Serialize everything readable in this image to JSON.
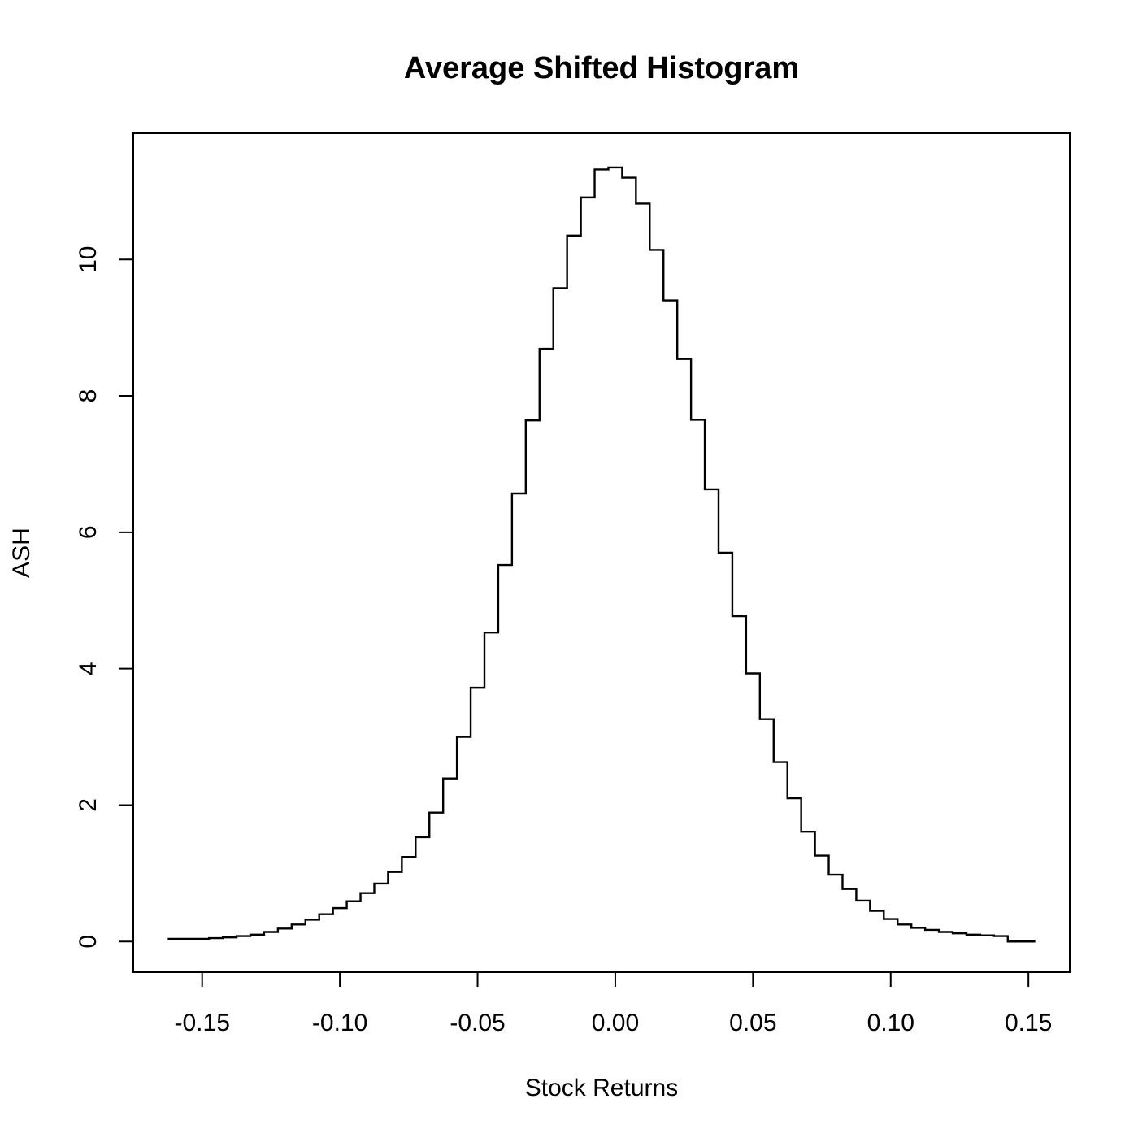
{
  "chart_data": {
    "type": "line",
    "style": "step",
    "title": "Average Shifted Histogram",
    "xlabel": "Stock Returns",
    "ylabel": "ASH",
    "xlim": [
      -0.175,
      0.165
    ],
    "ylim": [
      -0.45,
      11.85
    ],
    "xticks": [
      -0.15,
      -0.1,
      -0.05,
      0.0,
      0.05,
      0.1,
      0.15
    ],
    "xtick_labels": [
      "-0.15",
      "-0.10",
      "-0.05",
      "0.00",
      "0.05",
      "0.10",
      "0.15"
    ],
    "yticks": [
      0,
      2,
      4,
      6,
      8,
      10
    ],
    "ytick_labels": [
      "0",
      "2",
      "4",
      "6",
      "8",
      "10"
    ],
    "grid": false,
    "series": [
      {
        "name": "ASH",
        "x": [
          -0.1625,
          -0.1575,
          -0.1525,
          -0.1475,
          -0.1425,
          -0.1375,
          -0.1325,
          -0.1275,
          -0.1225,
          -0.1175,
          -0.1125,
          -0.1075,
          -0.1025,
          -0.0975,
          -0.0925,
          -0.0875,
          -0.0825,
          -0.0775,
          -0.0725,
          -0.0675,
          -0.0625,
          -0.0575,
          -0.0525,
          -0.0475,
          -0.0425,
          -0.0375,
          -0.0325,
          -0.0275,
          -0.0225,
          -0.0175,
          -0.0125,
          -0.0075,
          -0.0025,
          0.0025,
          0.0075,
          0.0125,
          0.0175,
          0.0225,
          0.0275,
          0.0325,
          0.0375,
          0.0425,
          0.0475,
          0.0525,
          0.0575,
          0.0625,
          0.0675,
          0.0725,
          0.0775,
          0.0825,
          0.0875,
          0.0925,
          0.0975,
          0.1025,
          0.1075,
          0.1125,
          0.1175,
          0.1225,
          0.1275,
          0.1325,
          0.1375,
          0.1425,
          0.1475,
          0.1525
        ],
        "y": [
          0.04,
          0.04,
          0.04,
          0.05,
          0.06,
          0.08,
          0.1,
          0.14,
          0.19,
          0.25,
          0.32,
          0.4,
          0.49,
          0.59,
          0.71,
          0.85,
          1.02,
          1.24,
          1.53,
          1.89,
          2.39,
          3.0,
          3.72,
          4.53,
          5.52,
          6.57,
          7.64,
          8.69,
          9.58,
          10.35,
          10.91,
          11.32,
          11.35,
          11.2,
          10.82,
          10.14,
          9.4,
          8.54,
          7.65,
          6.63,
          5.7,
          4.77,
          3.93,
          3.26,
          2.63,
          2.1,
          1.61,
          1.26,
          0.98,
          0.77,
          0.6,
          0.45,
          0.33,
          0.25,
          0.2,
          0.17,
          0.14,
          0.12,
          0.1,
          0.09,
          0.08,
          0.0,
          0.0,
          0.0
        ]
      }
    ]
  }
}
